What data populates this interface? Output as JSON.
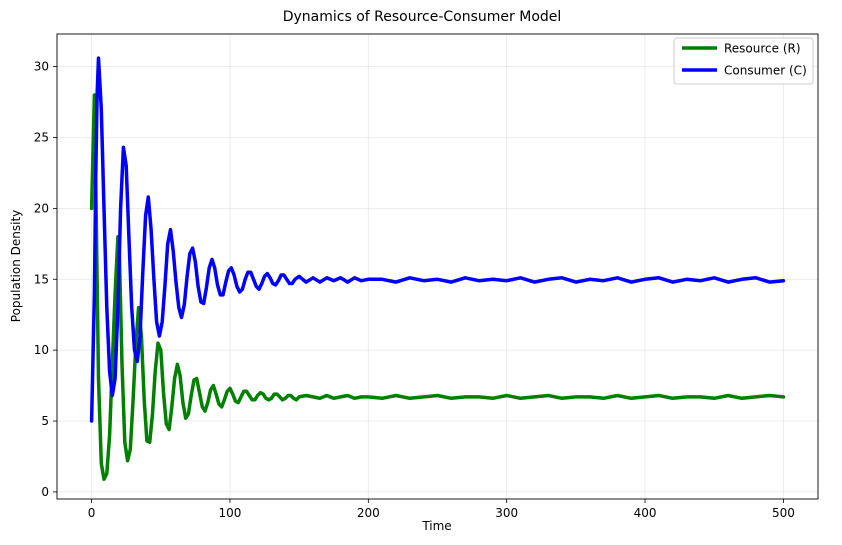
{
  "chart_data": {
    "type": "line",
    "title": "Dynamics of Resource-Consumer Model",
    "xlabel": "Time",
    "ylabel": "Population Density",
    "xlim": [
      -25,
      525
    ],
    "ylim": [
      -0.5,
      32.3
    ],
    "xticks": [
      0,
      100,
      200,
      300,
      400,
      500
    ],
    "yticks": [
      0,
      5,
      10,
      15,
      20,
      25,
      30
    ],
    "grid": true,
    "legend_position": "top-right",
    "series": [
      {
        "name": "Resource (R)",
        "color": "#008000",
        "x": [
          0,
          2,
          3,
          5,
          7,
          9,
          11,
          13,
          15,
          17,
          19,
          20,
          22,
          24,
          26,
          28,
          30,
          32,
          34,
          36,
          38,
          40,
          42,
          44,
          46,
          48,
          50,
          52,
          54,
          56,
          58,
          60,
          62,
          64,
          66,
          68,
          70,
          72,
          74,
          76,
          78,
          80,
          82,
          84,
          86,
          88,
          90,
          92,
          94,
          96,
          98,
          100,
          102,
          104,
          106,
          108,
          110,
          112,
          114,
          116,
          118,
          120,
          122,
          124,
          126,
          128,
          130,
          132,
          134,
          136,
          138,
          140,
          142,
          144,
          146,
          148,
          150,
          155,
          160,
          165,
          170,
          175,
          180,
          185,
          190,
          195,
          200,
          210,
          220,
          230,
          240,
          250,
          260,
          270,
          280,
          290,
          300,
          310,
          320,
          330,
          340,
          350,
          360,
          370,
          380,
          390,
          400,
          410,
          420,
          430,
          440,
          450,
          460,
          470,
          480,
          490,
          500
        ],
        "values": [
          20,
          28,
          22,
          8,
          2,
          0.9,
          1.3,
          4,
          9,
          14,
          18,
          17,
          9,
          3.5,
          2.2,
          3,
          6.5,
          10.5,
          13,
          11,
          6.5,
          3.6,
          3.5,
          5.5,
          8.5,
          10.5,
          10,
          7,
          4.8,
          4.4,
          6,
          8,
          9,
          8.2,
          6.3,
          5.2,
          5.5,
          6.8,
          7.9,
          8,
          7,
          6,
          5.7,
          6.3,
          7.2,
          7.5,
          6.9,
          6.2,
          6,
          6.5,
          7.1,
          7.3,
          6.9,
          6.4,
          6.3,
          6.7,
          7.1,
          7.1,
          6.8,
          6.5,
          6.5,
          6.8,
          7,
          6.9,
          6.6,
          6.5,
          6.6,
          6.9,
          6.9,
          6.7,
          6.5,
          6.6,
          6.8,
          6.8,
          6.6,
          6.5,
          6.7,
          6.8,
          6.7,
          6.6,
          6.8,
          6.6,
          6.7,
          6.8,
          6.6,
          6.7,
          6.7,
          6.6,
          6.8,
          6.6,
          6.7,
          6.8,
          6.6,
          6.7,
          6.7,
          6.6,
          6.8,
          6.6,
          6.7,
          6.8,
          6.6,
          6.7,
          6.7,
          6.6,
          6.8,
          6.6,
          6.7,
          6.8,
          6.6,
          6.7,
          6.7,
          6.6,
          6.8,
          6.6,
          6.7,
          6.8,
          6.7
        ]
      },
      {
        "name": "Consumer (C)",
        "color": "#0000ff",
        "x": [
          0,
          2,
          3,
          4,
          5,
          7,
          9,
          11,
          13,
          15,
          17,
          19,
          21,
          23,
          25,
          27,
          29,
          31,
          33,
          35,
          37,
          39,
          41,
          43,
          45,
          47,
          49,
          51,
          53,
          55,
          57,
          59,
          61,
          63,
          65,
          67,
          69,
          71,
          73,
          75,
          77,
          79,
          81,
          83,
          85,
          87,
          89,
          91,
          93,
          95,
          97,
          99,
          101,
          103,
          105,
          107,
          109,
          111,
          113,
          115,
          117,
          119,
          121,
          123,
          125,
          127,
          129,
          131,
          133,
          135,
          137,
          139,
          141,
          143,
          145,
          147,
          150,
          155,
          160,
          165,
          170,
          175,
          180,
          185,
          190,
          195,
          200,
          210,
          220,
          230,
          240,
          250,
          260,
          270,
          280,
          290,
          300,
          310,
          320,
          330,
          340,
          350,
          360,
          370,
          380,
          390,
          400,
          410,
          420,
          430,
          440,
          450,
          460,
          470,
          480,
          490,
          500
        ],
        "values": [
          5,
          14,
          22,
          28,
          30.6,
          27,
          20,
          13,
          8.5,
          6.8,
          8,
          13,
          20,
          24.3,
          23,
          18,
          13,
          10,
          9.2,
          11,
          15.5,
          19.5,
          20.8,
          18.5,
          15,
          12,
          11,
          12,
          14.5,
          17.5,
          18.5,
          17,
          14.8,
          13,
          12.3,
          13.2,
          15.2,
          16.8,
          17.2,
          16.2,
          14.5,
          13.4,
          13.3,
          14.4,
          15.8,
          16.4,
          15.8,
          14.6,
          13.9,
          13.9,
          14.8,
          15.6,
          15.8,
          15.3,
          14.5,
          14.1,
          14.3,
          15,
          15.5,
          15.5,
          15,
          14.5,
          14.3,
          14.7,
          15.2,
          15.4,
          15.1,
          14.7,
          14.6,
          14.9,
          15.3,
          15.3,
          15,
          14.7,
          14.7,
          15,
          15.2,
          14.8,
          15.1,
          14.8,
          15.1,
          14.9,
          15.1,
          14.8,
          15.1,
          14.9,
          15,
          15,
          14.8,
          15.1,
          14.9,
          15,
          14.8,
          15.1,
          14.9,
          15,
          14.9,
          15.1,
          14.8,
          15,
          15.1,
          14.8,
          15,
          14.9,
          15.1,
          14.8,
          15,
          15.1,
          14.8,
          15,
          14.9,
          15.1,
          14.8,
          15,
          15.1,
          14.8,
          14.9
        ]
      }
    ]
  }
}
